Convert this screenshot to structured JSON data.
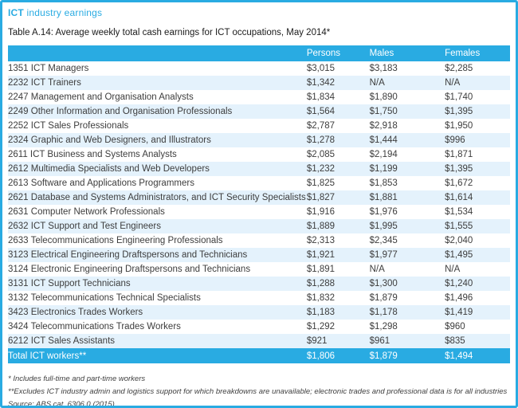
{
  "header": {
    "title_bold": "ICT",
    "title_rest": " industry earnings",
    "subtitle": "Table A.14: Average weekly total cash earnings for ICT occupations, May 2014*"
  },
  "colors": {
    "accent": "#29abe2",
    "row_stripe": "#e4f2fc"
  },
  "table": {
    "columns": [
      "",
      "Persons",
      "Males",
      "Females"
    ],
    "rows": [
      {
        "occupation": "1351 ICT Managers",
        "persons": "$3,015",
        "males": "$3,183",
        "females": "$2,285"
      },
      {
        "occupation": "2232 ICT Trainers",
        "persons": "$1,342",
        "males": "N/A",
        "females": "N/A"
      },
      {
        "occupation": "2247 Management and Organisation Analysts",
        "persons": "$1,834",
        "males": "$1,890",
        "females": "$1,740"
      },
      {
        "occupation": "2249 Other Information and Organisation Professionals",
        "persons": "$1,564",
        "males": "$1,750",
        "females": "$1,395"
      },
      {
        "occupation": "2252 ICT Sales Professionals",
        "persons": "$2,787",
        "males": "$2,918",
        "females": "$1,950"
      },
      {
        "occupation": "2324 Graphic and Web Designers, and Illustrators",
        "persons": "$1,278",
        "males": "$1,444",
        "females": "$996"
      },
      {
        "occupation": "2611 ICT Business and Systems Analysts",
        "persons": "$2,085",
        "males": "$2,194",
        "females": "$1,871"
      },
      {
        "occupation": "2612 Multimedia Specialists and Web Developers",
        "persons": "$1,232",
        "males": "$1,199",
        "females": "$1,395"
      },
      {
        "occupation": "2613 Software and Applications Programmers",
        "persons": "$1,825",
        "males": "$1,853",
        "females": "$1,672"
      },
      {
        "occupation": "2621 Database and Systems Administrators, and ICT Security Specialists",
        "persons": "$1,827",
        "males": "$1,881",
        "females": "$1,614"
      },
      {
        "occupation": "2631 Computer Network Professionals",
        "persons": "$1,916",
        "males": "$1,976",
        "females": "$1,534"
      },
      {
        "occupation": "2632 ICT Support and Test Engineers",
        "persons": "$1,889",
        "males": "$1,995",
        "females": "$1,555"
      },
      {
        "occupation": "2633 Telecommunications Engineering Professionals",
        "persons": "$2,313",
        "males": "$2,345",
        "females": "$2,040"
      },
      {
        "occupation": "3123 Electrical Engineering Draftspersons and Technicians",
        "persons": "$1,921",
        "males": "$1,977",
        "females": "$1,495"
      },
      {
        "occupation": "3124 Electronic Engineering Draftspersons and Technicians",
        "persons": "$1,891",
        "males": "N/A",
        "females": "N/A"
      },
      {
        "occupation": "3131 ICT Support Technicians",
        "persons": "$1,288",
        "males": "$1,300",
        "females": "$1,240"
      },
      {
        "occupation": "3132 Telecommunications Technical Specialists",
        "persons": "$1,832",
        "males": "$1,879",
        "females": "$1,496"
      },
      {
        "occupation": "3423 Electronics Trades Workers",
        "persons": "$1,183",
        "males": "$1,178",
        "females": "$1,419"
      },
      {
        "occupation": "3424 Telecommunications Trades Workers",
        "persons": "$1,292",
        "males": "$1,298",
        "females": "$960"
      },
      {
        "occupation": "6212 ICT Sales Assistants",
        "persons": "$921",
        "males": "$961",
        "females": "$835"
      }
    ],
    "total": {
      "occupation": "Total ICT workers**",
      "persons": "$1,806",
      "males": "$1,879",
      "females": "$1,494"
    }
  },
  "footnotes": [
    "* Includes full-time and part-time workers",
    "**Excludes ICT industry admin and logistics support for which breakdowns are unavailable; electronic trades and professional data is for all industries",
    "Source: ABS cat. 6306.0 (2015)"
  ]
}
